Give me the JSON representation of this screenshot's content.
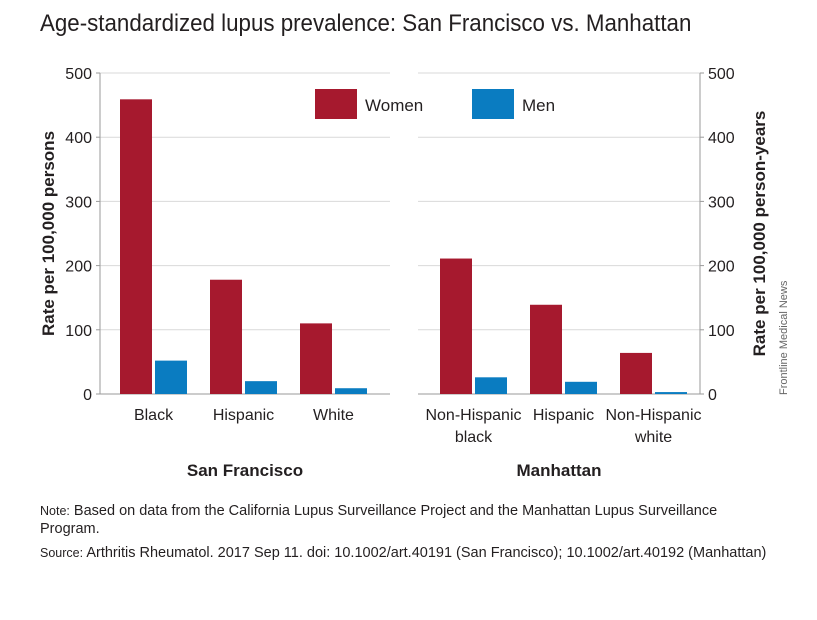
{
  "title": "Age-standardized lupus prevalence: San Francisco vs. Manhattan",
  "credit": "Frontline Medical News",
  "note_label": "Note:",
  "note_text": "Based on data from the California Lupus Surveillance Project and the Manhattan Lupus Surveillance Program.",
  "source_label": "Source:",
  "source_text": "Arthritis Rheumatol. 2017 Sep 11. doi: 10.1002/art.40191 (San Francisco); 10.1002/art.40192 (Manhattan)",
  "colors": {
    "women": "#a6192e",
    "men": "#0a7cc1",
    "grid": "#d9d9d9",
    "axis": "#9a9a9a",
    "text": "#231f20"
  },
  "chart_data": [
    {
      "type": "bar",
      "panel": "San Francisco",
      "xlabel": "San Francisco",
      "ylabel": "Rate per 100,000 persons",
      "ylim": [
        0,
        500
      ],
      "yticks": [
        0,
        100,
        200,
        300,
        400,
        500
      ],
      "grid": true,
      "categories": [
        [
          "Black"
        ],
        [
          "Hispanic"
        ],
        [
          "White"
        ]
      ],
      "series": [
        {
          "name": "Women",
          "values": [
            459,
            178,
            110
          ]
        },
        {
          "name": "Men",
          "values": [
            52,
            20,
            9
          ]
        }
      ]
    },
    {
      "type": "bar",
      "panel": "Manhattan",
      "xlabel": "Manhattan",
      "ylabel": "Rate per 100,000 person-years",
      "ylim": [
        0,
        500
      ],
      "yticks": [
        0,
        100,
        200,
        300,
        400,
        500
      ],
      "grid": true,
      "legend_position": "top",
      "categories": [
        [
          "Non-Hispanic",
          "black"
        ],
        [
          "Hispanic"
        ],
        [
          "Non-Hispanic",
          "white"
        ]
      ],
      "series": [
        {
          "name": "Women",
          "values": [
            211,
            139,
            64
          ]
        },
        {
          "name": "Men",
          "values": [
            26,
            19,
            3
          ]
        }
      ]
    }
  ]
}
